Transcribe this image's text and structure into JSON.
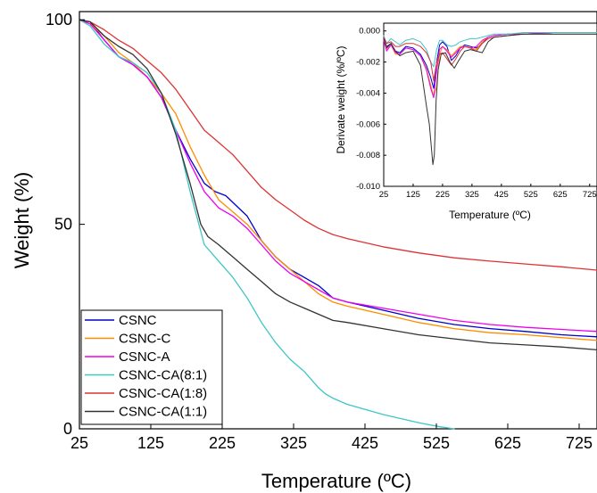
{
  "chart_data": [
    {
      "type": "line",
      "xlabel": "Temperature (ºC)",
      "ylabel": "Weight (%)",
      "xlim": [
        25,
        750
      ],
      "ylim": [
        0,
        102
      ],
      "xticks": [
        25,
        125,
        225,
        325,
        425,
        525,
        625,
        725
      ],
      "yticks": [
        0,
        50,
        100
      ],
      "grid": false,
      "legend_position": "bottom-left",
      "series": [
        {
          "name": "CSNC",
          "color": "#0000cc",
          "x": [
            25,
            40,
            60,
            80,
            100,
            120,
            140,
            160,
            180,
            200,
            215,
            230,
            260,
            280,
            300,
            320,
            340,
            360,
            380,
            400,
            450,
            500,
            550,
            600,
            650,
            700,
            750
          ],
          "y": [
            100,
            99.5,
            95,
            91,
            89,
            86,
            81,
            73,
            66,
            60,
            58,
            57,
            52,
            46,
            42,
            39,
            37,
            35,
            32,
            31,
            29,
            27,
            25.5,
            24.5,
            23.8,
            23,
            22.5
          ]
        },
        {
          "name": "CSNC-C",
          "color": "#ff8c00",
          "x": [
            25,
            40,
            60,
            80,
            100,
            120,
            140,
            160,
            180,
            200,
            220,
            240,
            260,
            280,
            300,
            320,
            340,
            360,
            380,
            400,
            450,
            500,
            550,
            600,
            650,
            700,
            750
          ],
          "y": [
            100,
            99,
            96,
            92,
            89.5,
            86,
            82,
            77,
            69,
            62,
            56,
            53,
            50,
            46,
            42,
            39,
            36,
            33,
            31,
            30,
            28,
            26,
            24.5,
            23.5,
            23,
            22.3,
            21.6
          ]
        },
        {
          "name": "CSNC-A",
          "color": "#ee00ee",
          "x": [
            25,
            40,
            60,
            80,
            100,
            120,
            140,
            160,
            180,
            200,
            220,
            240,
            260,
            280,
            300,
            320,
            340,
            360,
            380,
            400,
            450,
            500,
            550,
            600,
            650,
            700,
            750
          ],
          "y": [
            100,
            99,
            95,
            91,
            89,
            86,
            81,
            73,
            65,
            58,
            54,
            52,
            49,
            45,
            41,
            38,
            36,
            34,
            32,
            31,
            29.5,
            28,
            26.5,
            25.5,
            24.8,
            24.3,
            23.8
          ]
        },
        {
          "name": "CSNC-CA(8:1)",
          "color": "#3ec6c6",
          "x": [
            25,
            40,
            60,
            80,
            100,
            120,
            140,
            160,
            180,
            200,
            220,
            240,
            260,
            280,
            300,
            320,
            340,
            360,
            370,
            380,
            400,
            450,
            500,
            530,
            550
          ],
          "y": [
            100,
            98.5,
            94,
            91,
            89.5,
            87,
            82,
            73,
            58,
            45,
            41,
            37,
            32,
            26,
            21,
            17,
            14,
            10,
            8.5,
            7.5,
            6,
            3.5,
            1.5,
            0.5,
            0
          ]
        },
        {
          "name": "CSNC-CA(1:8)",
          "color": "#dd3333",
          "x": [
            25,
            40,
            60,
            80,
            100,
            120,
            140,
            160,
            180,
            200,
            220,
            240,
            260,
            280,
            300,
            320,
            340,
            360,
            380,
            400,
            450,
            500,
            550,
            600,
            650,
            700,
            750
          ],
          "y": [
            100,
            99.5,
            97.5,
            95,
            93,
            90,
            87,
            83,
            78,
            73,
            70,
            67,
            63,
            59,
            56,
            53.5,
            51,
            49,
            47.5,
            46.5,
            44.5,
            43,
            41.8,
            41,
            40.3,
            39.6,
            38.8
          ]
        },
        {
          "name": "CSNC-CA(1:1)",
          "color": "#333333",
          "x": [
            25,
            40,
            60,
            80,
            100,
            120,
            140,
            160,
            180,
            195,
            205,
            220,
            240,
            260,
            280,
            300,
            320,
            340,
            360,
            380,
            400,
            450,
            500,
            550,
            600,
            650,
            700,
            750
          ],
          "y": [
            100,
            99.5,
            96,
            93.5,
            91.5,
            88,
            82,
            72,
            60,
            50,
            47,
            45,
            42,
            39,
            36,
            33,
            31,
            29.5,
            28,
            26.5,
            26,
            24.5,
            23,
            22,
            21,
            20.5,
            20,
            19.3
          ]
        }
      ]
    },
    {
      "type": "line",
      "xlabel": "Temperature (ºC)",
      "ylabel": "Derivate weight (%/ºC)",
      "xlim": [
        25,
        750
      ],
      "ylim": [
        -0.01,
        0.0005
      ],
      "xticks": [
        25,
        125,
        225,
        325,
        425,
        525,
        625,
        725
      ],
      "yticks": [
        0,
        -0.002,
        -0.004,
        -0.006,
        -0.008,
        -0.01
      ],
      "ytick_labels": [
        "0.000",
        "-0.002",
        "-0.004",
        "-0.006",
        "-0.008",
        "-0.010"
      ],
      "grid": false,
      "series": [
        {
          "color": "#0000cc",
          "x": [
            25,
            35,
            50,
            65,
            80,
            100,
            125,
            150,
            170,
            185,
            195,
            205,
            215,
            225,
            240,
            255,
            270,
            285,
            300,
            320,
            340,
            360,
            380,
            400,
            450,
            500,
            600,
            750
          ],
          "y": [
            -0.0005,
            -0.0011,
            -0.0008,
            -0.0013,
            -0.0014,
            -0.001,
            -0.0011,
            -0.0015,
            -0.0022,
            -0.003,
            -0.0037,
            -0.002,
            -0.0009,
            -0.0007,
            -0.001,
            -0.0019,
            -0.0016,
            -0.0011,
            -0.0009,
            -0.001,
            -0.0011,
            -0.0008,
            -0.0004,
            -0.0003,
            -0.0002,
            -0.0002,
            -0.0001,
            -0.0001
          ]
        },
        {
          "color": "#ff8c00",
          "x": [
            25,
            35,
            50,
            65,
            80,
            100,
            125,
            150,
            170,
            185,
            195,
            205,
            215,
            225,
            240,
            255,
            270,
            285,
            300,
            320,
            340,
            360,
            380,
            400,
            450,
            500,
            600,
            750
          ],
          "y": [
            -0.0006,
            -0.0012,
            -0.0009,
            -0.0015,
            -0.0015,
            -0.0011,
            -0.0012,
            -0.0016,
            -0.0024,
            -0.0035,
            -0.0042,
            -0.0036,
            -0.0015,
            -0.001,
            -0.0012,
            -0.0016,
            -0.0013,
            -0.001,
            -0.001,
            -0.0011,
            -0.0012,
            -0.0007,
            -0.0004,
            -0.0003,
            -0.0002,
            -0.0002,
            -0.0001,
            -0.0001
          ]
        },
        {
          "color": "#ee00ee",
          "x": [
            25,
            35,
            50,
            65,
            80,
            100,
            125,
            150,
            170,
            185,
            195,
            205,
            215,
            225,
            240,
            255,
            270,
            285,
            300,
            320,
            340,
            360,
            380,
            400,
            450,
            500,
            600,
            750
          ],
          "y": [
            -0.0006,
            -0.0013,
            -0.0009,
            -0.0014,
            -0.0015,
            -0.0011,
            -0.0012,
            -0.0016,
            -0.0025,
            -0.0037,
            -0.0043,
            -0.0026,
            -0.0012,
            -0.001,
            -0.0013,
            -0.0017,
            -0.0014,
            -0.0011,
            -0.001,
            -0.0011,
            -0.001,
            -0.0006,
            -0.0004,
            -0.0003,
            -0.0002,
            -0.0002,
            -0.0001,
            -0.0001
          ]
        },
        {
          "color": "#3ec6c6",
          "x": [
            25,
            35,
            50,
            65,
            80,
            100,
            125,
            150,
            170,
            185,
            195,
            205,
            215,
            225,
            240,
            255,
            270,
            285,
            300,
            320,
            340,
            360,
            380,
            400,
            450,
            500,
            600,
            750
          ],
          "y": [
            -0.0003,
            -0.0008,
            -0.0005,
            -0.0007,
            -0.0009,
            -0.0006,
            -0.0005,
            -0.0007,
            -0.0012,
            -0.002,
            -0.0023,
            -0.0012,
            -0.0006,
            -0.0006,
            -0.0009,
            -0.001,
            -0.0009,
            -0.0007,
            -0.0006,
            -0.0005,
            -0.0005,
            -0.0004,
            -0.0003,
            -0.0002,
            -0.0002,
            -0.0001,
            -0.0001,
            -0.0001
          ]
        },
        {
          "color": "#dd3333",
          "x": [
            25,
            35,
            50,
            65,
            80,
            100,
            125,
            150,
            170,
            185,
            195,
            205,
            215,
            225,
            240,
            255,
            270,
            285,
            300,
            320,
            340,
            360,
            380,
            400,
            450,
            500,
            600,
            750
          ],
          "y": [
            -0.0004,
            -0.0008,
            -0.0007,
            -0.001,
            -0.001,
            -0.0008,
            -0.0008,
            -0.001,
            -0.0014,
            -0.002,
            -0.0032,
            -0.002,
            -0.0015,
            -0.0014,
            -0.0018,
            -0.0022,
            -0.0018,
            -0.0013,
            -0.001,
            -0.0011,
            -0.0013,
            -0.0008,
            -0.0005,
            -0.0004,
            -0.0003,
            -0.0002,
            -0.0002,
            -0.0002
          ]
        },
        {
          "color": "#333333",
          "x": [
            25,
            35,
            50,
            65,
            80,
            100,
            125,
            150,
            160,
            170,
            180,
            187,
            192,
            197,
            203,
            210,
            220,
            235,
            250,
            265,
            280,
            300,
            320,
            340,
            360,
            380,
            400,
            450,
            500,
            600,
            750
          ],
          "y": [
            -0.0005,
            -0.001,
            -0.0008,
            -0.0013,
            -0.0016,
            -0.0014,
            -0.0013,
            -0.0022,
            -0.0035,
            -0.0048,
            -0.006,
            -0.0075,
            -0.0086,
            -0.008,
            -0.0045,
            -0.0025,
            -0.0015,
            -0.0014,
            -0.002,
            -0.0024,
            -0.0019,
            -0.0013,
            -0.0012,
            -0.0013,
            -0.0014,
            -0.0007,
            -0.0004,
            -0.0003,
            -0.0002,
            -0.0002,
            -0.0002
          ]
        }
      ]
    }
  ]
}
